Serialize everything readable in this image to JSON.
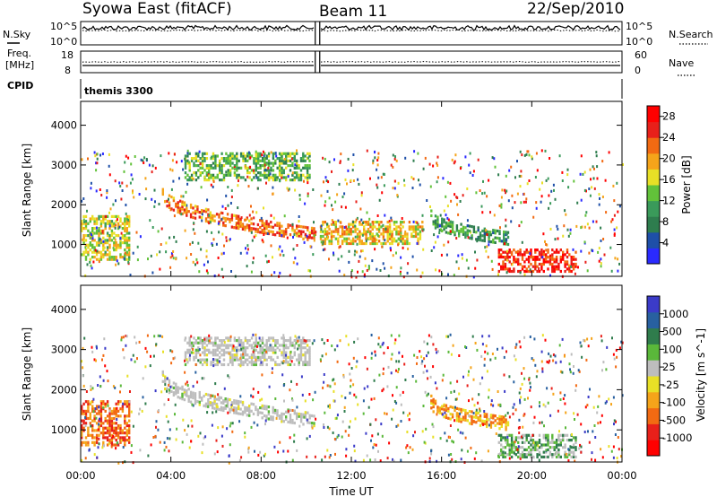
{
  "header": {
    "station": "Syowa East (fitACF)",
    "beam": "Beam 11",
    "date": "22/Sep/2010"
  },
  "top_panels": {
    "nsky_label": "N.Sky",
    "nsky_ticks": [
      "10^5",
      "10^0"
    ],
    "nsearch_label": "N.Search",
    "nsearch_ticks": [
      "10^5",
      "10^0"
    ],
    "freq_label_1": "Freq.",
    "freq_label_2": "[MHz]",
    "freq_ticks": [
      "18",
      "8"
    ],
    "nave_label": "Nave",
    "nave_ticks": [
      "60",
      "0"
    ],
    "cpid_label": "CPID",
    "cpid_value": "themis 3300"
  },
  "legend_styles": {
    "nsearch": "dotted",
    "nave": "dotted"
  },
  "colors": {
    "power": [
      "#2a2aff",
      "#1e4fa8",
      "#2e7d4e",
      "#3a9a5a",
      "#62c23a",
      "#e8e026",
      "#f5a41a",
      "#f26a12",
      "#e8201a",
      "#ff0000"
    ],
    "velocity": [
      "#3b3bc8",
      "#2860a0",
      "#2f7c4c",
      "#5ab83a",
      "#bdbdbd",
      "#e8e026",
      "#f5a41a",
      "#f26a12",
      "#e8201a",
      "#ff0000"
    ]
  },
  "chart_data": [
    {
      "type": "heatmap",
      "title": "",
      "xlabel": "Time UT",
      "ylabel": "Slant Range [km]",
      "x_ticks": [
        "00:00",
        "04:00",
        "08:00",
        "12:00",
        "16:00",
        "20:00",
        "00:00"
      ],
      "y_ticks": [
        1000,
        2000,
        3000,
        4000
      ],
      "xlim_hours": [
        0,
        24
      ],
      "ylim_km": [
        200,
        4600
      ],
      "colorbar": {
        "label": "Power [dB]",
        "ticks": [
          "4",
          "8",
          "12",
          "16",
          "20",
          "24",
          "28"
        ],
        "range": [
          0,
          30
        ]
      },
      "data_gap_hours": [
        10.4,
        10.6
      ],
      "features": [
        {
          "name": "near-range band",
          "t": [
            0,
            2.2
          ],
          "range_km": [
            600,
            1700
          ],
          "level_db": 16
        },
        {
          "name": "curved echo band",
          "t": [
            3.6,
            10.4
          ],
          "range_km_start": 2300,
          "range_km_end": 1250,
          "level_db": 22
        },
        {
          "name": "far-range band",
          "t": [
            4.6,
            10.2
          ],
          "range_km": [
            2600,
            3300
          ],
          "level_db": 12
        },
        {
          "name": "midnight band",
          "t": [
            10.6,
            15.2
          ],
          "range_km": [
            1000,
            1600
          ],
          "level_db": 18
        },
        {
          "name": "descending band",
          "t": [
            15.5,
            19.0
          ],
          "range_km_start": 1700,
          "range_km_end": 1150,
          "level_db": 10
        },
        {
          "name": "late near-range",
          "t": [
            18.5,
            22.0
          ],
          "range_km": [
            300,
            900
          ],
          "level_db": 26
        }
      ]
    },
    {
      "type": "heatmap",
      "title": "",
      "xlabel": "Time UT",
      "ylabel": "Slant Range [km]",
      "x_ticks": [
        "00:00",
        "04:00",
        "08:00",
        "12:00",
        "16:00",
        "20:00",
        "00:00"
      ],
      "y_ticks": [
        1000,
        2000,
        3000,
        4000
      ],
      "xlim_hours": [
        0,
        24
      ],
      "ylim_km": [
        200,
        4600
      ],
      "colorbar": {
        "label": "Velocity [m s^-1]",
        "ticks": [
          "1000",
          "500",
          "100",
          "25",
          "-25",
          "-100",
          "-500",
          "-1000"
        ]
      },
      "data_gap_hours": [
        10.4,
        10.6
      ],
      "features": [
        {
          "name": "near-range band",
          "t": [
            0,
            2.2
          ],
          "range_km": [
            600,
            1700
          ],
          "level_class": "-500"
        },
        {
          "name": "curved echo band",
          "t": [
            3.6,
            10.4
          ],
          "range_km_start": 2300,
          "range_km_end": 1250,
          "level_class": "ground scatter"
        },
        {
          "name": "far-range band",
          "t": [
            4.6,
            10.2
          ],
          "range_km": [
            2600,
            3300
          ],
          "level_class": "ground scatter"
        },
        {
          "name": "descending band",
          "t": [
            15.5,
            19.0
          ],
          "range_km_start": 1700,
          "range_km_end": 1150,
          "level_class": "-100"
        },
        {
          "name": "late near-range",
          "t": [
            18.5,
            22.0
          ],
          "range_km": [
            300,
            900
          ],
          "level_class": "100"
        }
      ]
    }
  ]
}
